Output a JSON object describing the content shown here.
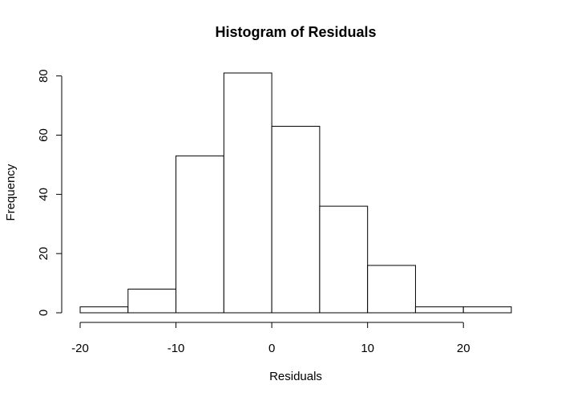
{
  "chart_data": {
    "type": "bar",
    "title": "Histogram of Residuals",
    "xlabel": "Residuals",
    "ylabel": "Frequency",
    "bins": [
      {
        "from": -20,
        "to": -15,
        "count": 2
      },
      {
        "from": -15,
        "to": -10,
        "count": 8
      },
      {
        "from": -10,
        "to": -5,
        "count": 53
      },
      {
        "from": -5,
        "to": 0,
        "count": 81
      },
      {
        "from": 0,
        "to": 5,
        "count": 63
      },
      {
        "from": 5,
        "to": 10,
        "count": 36
      },
      {
        "from": 10,
        "to": 15,
        "count": 16
      },
      {
        "from": 15,
        "to": 20,
        "count": 2
      },
      {
        "from": 20,
        "to": 25,
        "count": 2
      }
    ],
    "xticks": [
      -20,
      -10,
      0,
      10,
      20
    ],
    "yticks": [
      0,
      20,
      40,
      60,
      80
    ],
    "xlim": [
      -20,
      25
    ],
    "ylim": [
      0,
      81
    ],
    "grid": false,
    "fill_color": "#ffffff",
    "stroke_color": "#000000"
  }
}
